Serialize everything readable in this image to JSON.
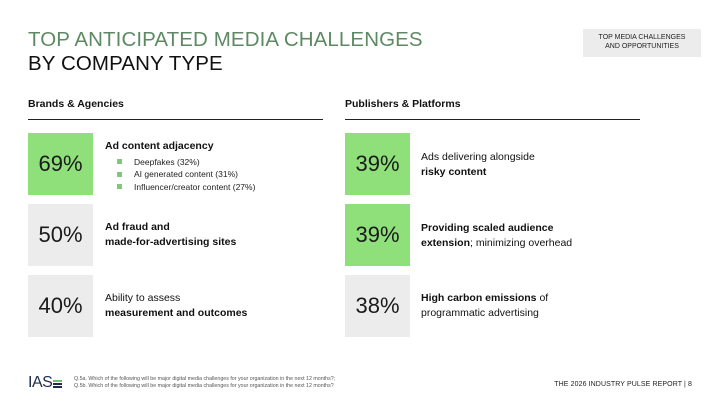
{
  "title": {
    "line1": "TOP ANTICIPATED MEDIA CHALLENGES",
    "line2": "BY COMPANY TYPE"
  },
  "section_tag": {
    "line1": "TOP MEDIA CHALLENGES",
    "line2": "AND OPPORTUNITIES"
  },
  "left": {
    "heading": "Brands & Agencies",
    "items": [
      {
        "pct": "69%",
        "title": "Ad content adjacency",
        "bullets": [
          "Deepfakes (32%)",
          "AI generated content (31%)",
          "Influencer/creator content (27%)"
        ]
      },
      {
        "pct": "50%",
        "line1": "Ad fraud and",
        "line2": "made-for-advertising sites"
      },
      {
        "pct": "40%",
        "line1": "Ability to assess",
        "line2": "measurement and outcomes"
      }
    ]
  },
  "right": {
    "heading": "Publishers & Platforms",
    "items": [
      {
        "pct": "39%",
        "line1": "Ads delivering alongside",
        "line2": "risky content"
      },
      {
        "pct": "39%",
        "line1_bold": "Providing scaled audience",
        "line2_bold": "extension",
        "line2_rest": "; minimizing overhead"
      },
      {
        "pct": "38%",
        "line1_bold": "High carbon emissions",
        "line1_rest": " of",
        "line2": "programmatic advertising"
      }
    ]
  },
  "footer": {
    "logo": "IAS",
    "note1": "Q.5a. Which of the following will be major digital media challenges for your organization in the next 12 months?;",
    "note2": "Q.5b. Which of the following will be major digital media challenges for your organization in the next 12 months?",
    "report": "THE 2026 INDUSTRY PULSE REPORT  |  8"
  },
  "colors": {
    "accent_green": "#8fe07a",
    "title_green": "#5d8a63",
    "box_grey": "#ececec"
  }
}
